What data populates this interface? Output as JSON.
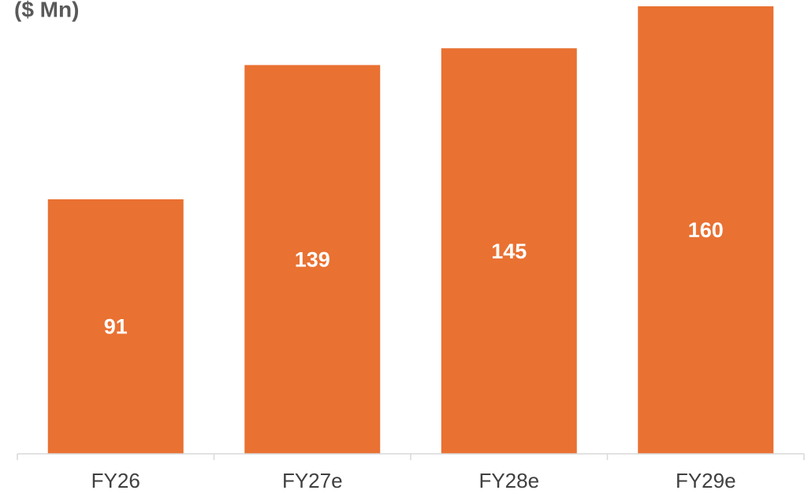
{
  "chart_data": {
    "type": "bar",
    "title": "($ Mn)",
    "categories": [
      "FY26",
      "FY27e",
      "FY28e",
      "FY29e"
    ],
    "values": [
      91,
      139,
      145,
      160
    ],
    "color": "#e97132"
  }
}
